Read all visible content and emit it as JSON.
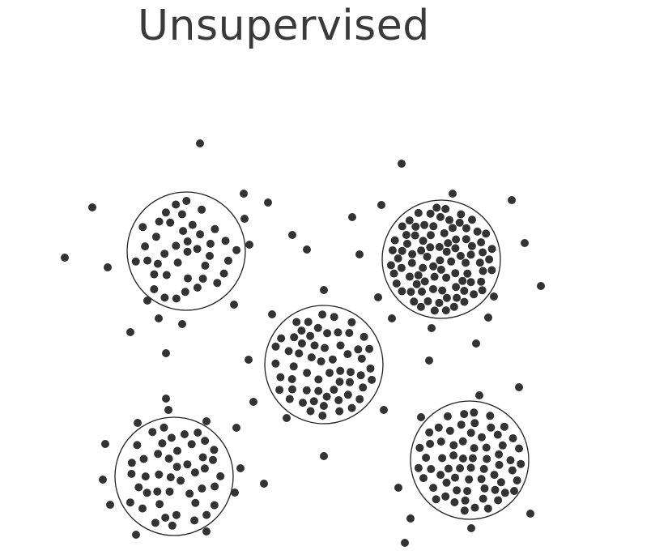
{
  "title": "Unsupervised",
  "colors": {
    "point": "#333333",
    "outline": "#222222",
    "title": "#3a3a3a"
  },
  "clusters": [
    {
      "name": "top-left"
    },
    {
      "name": "top-right"
    },
    {
      "name": "center"
    },
    {
      "name": "bottom-left"
    },
    {
      "name": "bottom-right"
    }
  ]
}
